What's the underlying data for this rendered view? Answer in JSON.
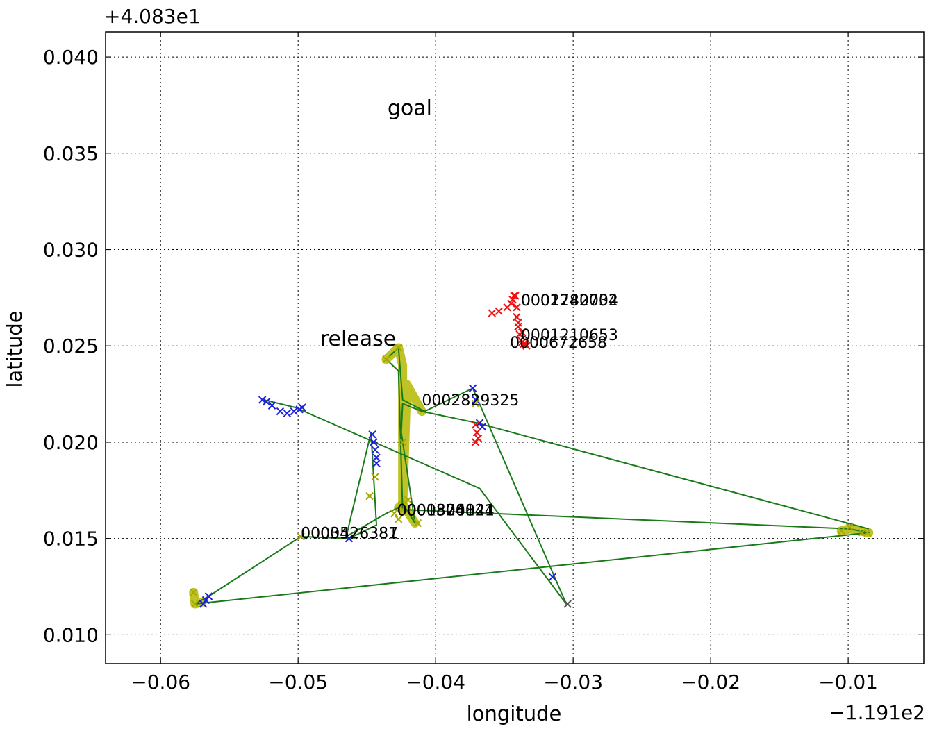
{
  "chart_data": {
    "type": "scatter",
    "title": "",
    "xlabel": "longitude",
    "ylabel": "latitude",
    "x_offset_label": "−1.191e2",
    "y_offset_label": "+4.083e1",
    "xlim": [
      -0.064,
      -0.0045
    ],
    "ylim": [
      0.0085,
      0.0413
    ],
    "xticks": [
      -0.06,
      -0.05,
      -0.04,
      -0.03,
      -0.02,
      -0.01
    ],
    "xtick_labels": [
      "−0.06",
      "−0.05",
      "−0.04",
      "−0.03",
      "−0.02",
      "−0.01"
    ],
    "yticks": [
      0.01,
      0.015,
      0.02,
      0.025,
      0.03,
      0.035,
      0.04
    ],
    "ytick_labels": [
      "0.010",
      "0.015",
      "0.020",
      "0.025",
      "0.030",
      "0.035",
      "0.040"
    ],
    "grid": true,
    "colors": {
      "path_line": "#1a7a1a",
      "highlight": "#b5b800",
      "blue_marker": "#1f1fdd",
      "red_marker": "#ee1111",
      "yellow_marker": "#a8a800",
      "gray_marker": "#555555"
    },
    "path": {
      "x": [
        -0.0525,
        -0.0502,
        -0.0368,
        -0.0305,
        -0.0373,
        -0.0408,
        -0.0424,
        -0.0427,
        -0.0436,
        -0.0427,
        -0.0424,
        -0.0099,
        -0.0085,
        -0.0575,
        -0.0565,
        -0.0498,
        -0.0463,
        -0.0443,
        -0.0447,
        -0.0465,
        -0.0436,
        -0.0427,
        -0.0424,
        -0.0415,
        -0.0425,
        -0.0424,
        -0.041,
        -0.037,
        -0.0085
      ],
      "y": [
        0.0222,
        0.0218,
        0.0176,
        0.0116,
        0.0228,
        0.0216,
        0.0222,
        0.0249,
        0.0243,
        0.0237,
        0.0165,
        0.0155,
        0.0153,
        0.0116,
        0.012,
        0.0151,
        0.015,
        0.0157,
        0.0205,
        0.0151,
        0.0163,
        0.0166,
        0.0168,
        0.0158,
        0.0205,
        0.022,
        0.0216,
        0.021,
        0.0155
      ]
    },
    "highlight_segments": [
      {
        "x": [
          -0.0436,
          -0.0427,
          -0.0424,
          -0.0424,
          -0.0421,
          -0.041
        ],
        "y": [
          0.0243,
          0.0249,
          0.024,
          0.0165,
          0.023,
          0.0216
        ]
      },
      {
        "x": [
          -0.0427,
          -0.0424,
          -0.0415
        ],
        "y": [
          0.0166,
          0.0168,
          0.0158
        ]
      },
      {
        "x": [
          -0.0105,
          -0.0099,
          -0.0085
        ],
        "y": [
          0.0154,
          0.0155,
          0.0153
        ]
      },
      {
        "x": [
          -0.0576,
          -0.0575,
          -0.057
        ],
        "y": [
          0.0122,
          0.0116,
          0.0117
        ]
      }
    ],
    "series": [
      {
        "color": "#1f1fdd",
        "marker": "x",
        "x": [
          -0.0526,
          -0.0523,
          -0.0519,
          -0.0513,
          -0.0508,
          -0.0503,
          -0.0499,
          -0.0497,
          -0.0373,
          -0.0371,
          -0.0368,
          -0.0366,
          -0.0315,
          -0.0446,
          -0.0445,
          -0.0444,
          -0.0443,
          -0.0443,
          -0.0463,
          -0.0567,
          -0.0565,
          -0.0569
        ],
        "y": [
          0.0222,
          0.0221,
          0.0219,
          0.0216,
          0.0215,
          0.0216,
          0.0217,
          0.0218,
          0.0228,
          0.0222,
          0.021,
          0.0208,
          0.013,
          0.0204,
          0.02,
          0.0196,
          0.0192,
          0.0189,
          0.015,
          0.0118,
          0.012,
          0.0116
        ]
      },
      {
        "color": "#ee1111",
        "marker": "x",
        "x": [
          -0.0359,
          -0.0354,
          -0.0348,
          -0.0345,
          -0.0344,
          -0.0343,
          -0.0342,
          -0.0341,
          -0.0341,
          -0.034,
          -0.0339,
          -0.0338,
          -0.0337,
          -0.0336,
          -0.0335,
          -0.0334,
          -0.034,
          -0.0337,
          -0.0371,
          -0.037,
          -0.0369,
          -0.0371
        ],
        "y": [
          0.0267,
          0.0268,
          0.027,
          0.0272,
          0.0274,
          0.0276,
          0.0276,
          0.027,
          0.0265,
          0.026,
          0.0256,
          0.0253,
          0.0252,
          0.0251,
          0.0251,
          0.025,
          0.0262,
          0.0257,
          0.0209,
          0.0205,
          0.0202,
          0.02
        ]
      },
      {
        "color": "#a8a800",
        "marker": "x",
        "x": [
          -0.0436,
          -0.0427,
          -0.0424,
          -0.0424,
          -0.043,
          -0.0413,
          -0.042,
          -0.0427,
          -0.0498,
          -0.0576,
          -0.0575,
          -0.0105,
          -0.0099,
          -0.009,
          -0.0086,
          -0.0371,
          -0.0444,
          -0.0448
        ],
        "y": [
          0.0243,
          0.0249,
          0.02,
          0.0165,
          0.0163,
          0.0158,
          0.017,
          0.016,
          0.0151,
          0.0122,
          0.0116,
          0.0154,
          0.0156,
          0.0153,
          0.0153,
          0.022,
          0.0182,
          0.0172
        ]
      },
      {
        "color": "#555555",
        "marker": "x",
        "x": [
          -0.0304
        ],
        "y": [
          0.0116
        ]
      }
    ],
    "annotations": [
      {
        "text": "goal",
        "x": -0.0435,
        "y": 0.037,
        "size": "big"
      },
      {
        "text": "release",
        "x": -0.0484,
        "y": 0.025,
        "size": "big"
      },
      {
        "text": "0001740734",
        "x": -0.0338,
        "y": 0.0271,
        "size": "small"
      },
      {
        "text": "0002282002",
        "x": -0.0338,
        "y": 0.0271,
        "size": "small"
      },
      {
        "text": "0001210653",
        "x": -0.0338,
        "y": 0.0253,
        "size": "small"
      },
      {
        "text": "0000672658",
        "x": -0.0346,
        "y": 0.0249,
        "size": "small"
      },
      {
        "text": "0002829325",
        "x": -0.041,
        "y": 0.0219,
        "size": "small"
      },
      {
        "text": "0000874821",
        "x": -0.0428,
        "y": 0.0162,
        "size": "small"
      },
      {
        "text": "0001526024",
        "x": -0.0428,
        "y": 0.0162,
        "size": "small"
      },
      {
        "text": "0000300141",
        "x": -0.0428,
        "y": 0.0162,
        "size": "small"
      },
      {
        "text": "0000426381",
        "x": -0.0498,
        "y": 0.015,
        "size": "small"
      },
      {
        "text": "0003526387",
        "x": -0.0498,
        "y": 0.015,
        "size": "small"
      }
    ]
  }
}
